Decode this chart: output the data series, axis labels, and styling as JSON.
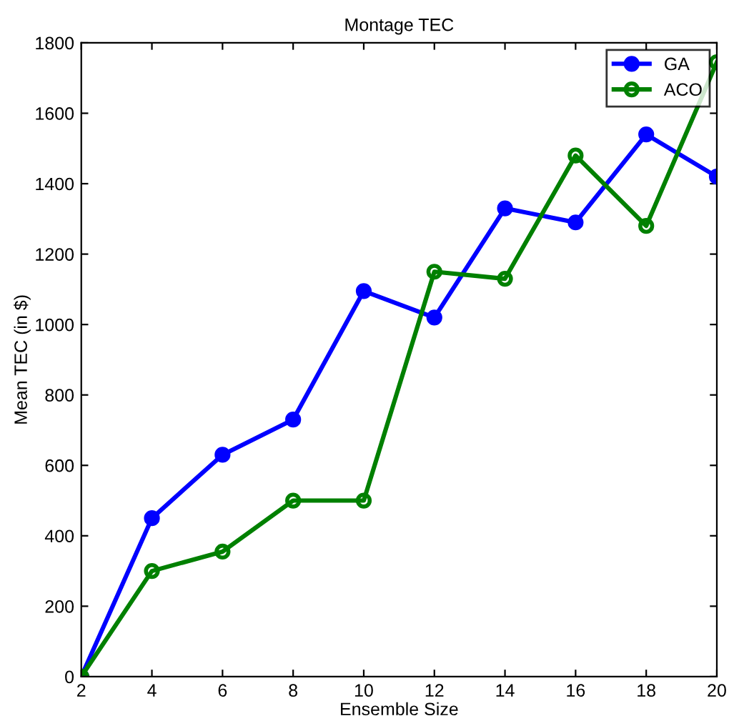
{
  "chart_data": {
    "type": "line",
    "title": "Montage TEC",
    "xlabel": "Ensemble Size",
    "ylabel": "Mean TEC (in $)",
    "x": [
      2,
      4,
      6,
      8,
      10,
      12,
      14,
      16,
      18,
      20
    ],
    "series": [
      {
        "name": "GA",
        "color": "#0000ff",
        "values": [
          0,
          450,
          630,
          730,
          1095,
          1020,
          1330,
          1290,
          1540,
          1420
        ]
      },
      {
        "name": "ACO",
        "color": "#008000",
        "values": [
          0,
          300,
          355,
          500,
          500,
          1150,
          1130,
          1480,
          1280,
          1745
        ]
      }
    ],
    "xlim": [
      2,
      20
    ],
    "xticks": [
      2,
      4,
      6,
      8,
      10,
      12,
      14,
      16,
      18,
      20
    ],
    "ylim": [
      0,
      1800
    ],
    "yticks": [
      0,
      200,
      400,
      600,
      800,
      1000,
      1200,
      1400,
      1600,
      1800
    ],
    "legend": "top right",
    "marker": "circle",
    "line_style": "solid",
    "grid": false
  }
}
